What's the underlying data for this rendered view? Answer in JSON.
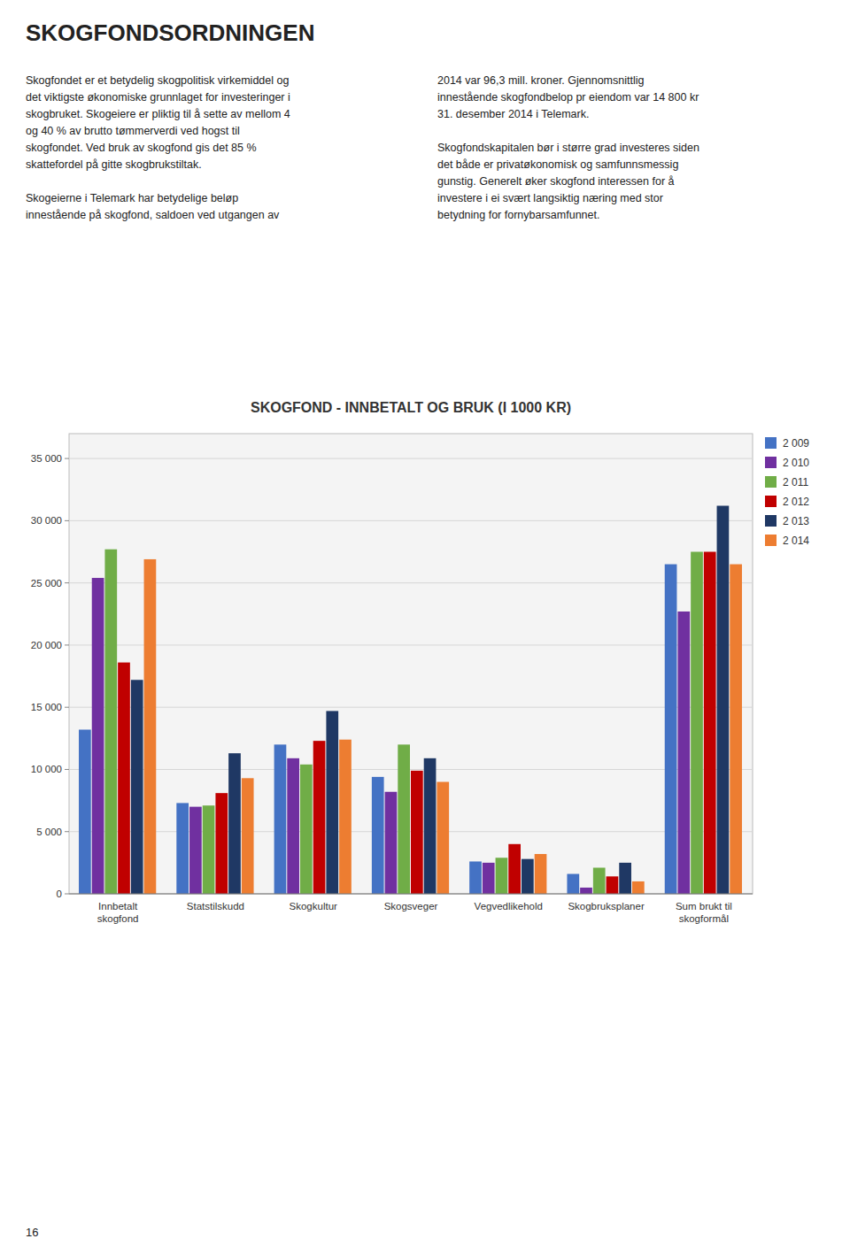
{
  "heading": "SKOGFONDSORDNINGEN",
  "body_left": "Skogfondet er et betydelig skogpolitisk virkemiddel og\ndet viktigste økonomiske grunnlaget for investeringer i\nskogbruket. Skogeiere er pliktig til å sette av mellom 4\nog 40 % av brutto tømmerverdi ved hogst til\nskogfondet. Ved bruk av skogfond gis det 85 %\nskattefordel på gitte skogbrukstiltak.\n\nSkogeierne i Telemark har betydelige beløp\ninnestående på skogfond, saldoen ved utgangen av",
  "body_right": "2014 var 96,3 mill. kroner. Gjennomsnittlig\ninnestående skogfondbelop pr eiendom var 14 800 kr\n31. desember 2014 i Telemark.\n\nSkogfondskapitalen bør i større grad investeres siden\ndet både er privatøkonomisk og samfunnsmessig\ngunstig. Generelt øker skogfond interessen for å\ninvestere i ei svært langsiktig næring med stor\nbetydning for fornybarsamfunnet.",
  "page_number": "16",
  "chart_data": {
    "type": "bar",
    "title": "SKOGFOND - INNBETALT OG BRUK (I 1000 KR)",
    "categories": [
      "Innbetalt\nskogfond",
      "Statstilskudd",
      "Skogkultur",
      "Skogsveger",
      "Vegvedlikehold",
      "Skogbruksplaner",
      "Sum brukt til\nskogformål"
    ],
    "series": [
      {
        "name": "2 009",
        "color": "#4472C4",
        "values": [
          13200,
          7300,
          12000,
          9400,
          2600,
          1600,
          26500
        ]
      },
      {
        "name": "2 010",
        "color": "#7030A0",
        "values": [
          25400,
          7000,
          10900,
          8200,
          2500,
          500,
          22700
        ]
      },
      {
        "name": "2 011",
        "color": "#70AD47",
        "values": [
          27700,
          7100,
          10400,
          12000,
          2900,
          2100,
          27500
        ]
      },
      {
        "name": "2 012",
        "color": "#C00000",
        "values": [
          18600,
          8100,
          12300,
          9900,
          4000,
          1400,
          27500
        ]
      },
      {
        "name": "2 013",
        "color": "#1F3864",
        "values": [
          17200,
          11300,
          14700,
          10900,
          2800,
          2500,
          31200
        ]
      },
      {
        "name": "2 014",
        "color": "#ED7D31",
        "values": [
          26900,
          9300,
          12400,
          9000,
          3200,
          1000,
          26500
        ]
      }
    ],
    "ylim": [
      0,
      37000
    ],
    "yticks": [
      0,
      {
        "value": 5000,
        "label": "5 000"
      },
      {
        "value": 10000,
        "label": "10 000"
      },
      {
        "value": 15000,
        "label": "15 000"
      },
      {
        "value": 20000,
        "label": "20 000"
      },
      {
        "value": 25000,
        "label": "25 000"
      },
      {
        "value": 30000,
        "label": "30 000"
      },
      {
        "value": 35000,
        "label": "35 000"
      }
    ],
    "grid": true,
    "legend": "right"
  }
}
